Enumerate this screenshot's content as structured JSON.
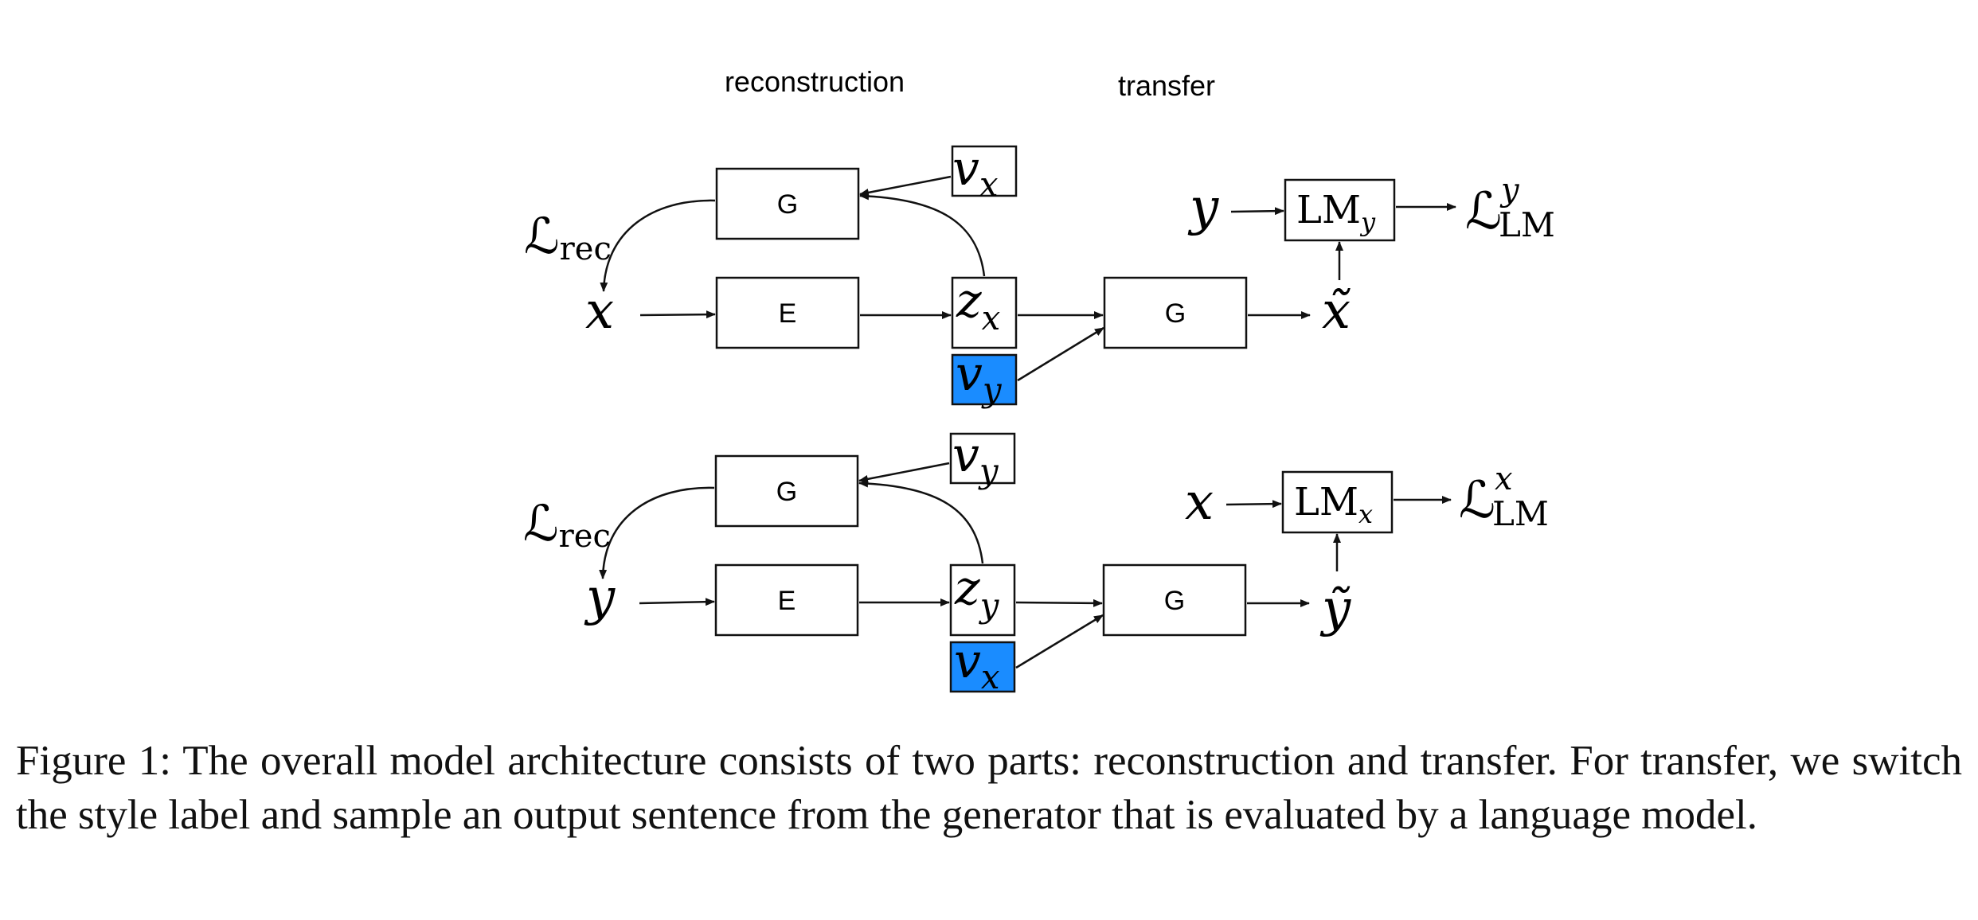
{
  "figure": {
    "section_labels": {
      "reconstruction": "reconstruction",
      "transfer": "transfer"
    },
    "colors": {
      "style_highlight": "#1a8cff",
      "stroke": "#111111"
    },
    "rows": [
      {
        "id": "x-row",
        "generator_label": "G",
        "encoder_label": "E",
        "transfer_generator_label": "G",
        "loss_rec": {
          "base": "ℒ",
          "sub": "rec"
        },
        "input": "x",
        "style_in": {
          "base": "v",
          "sub": "x"
        },
        "latent": {
          "base": "z",
          "sub": "x"
        },
        "style_swap": {
          "base": "v",
          "sub": "y"
        },
        "output": "x̃",
        "lm": {
          "base": "LM",
          "sub": "y"
        },
        "lm_input": "y",
        "loss_lm": {
          "base": "ℒ",
          "sup": "y",
          "sub": "LM"
        }
      },
      {
        "id": "y-row",
        "generator_label": "G",
        "encoder_label": "E",
        "transfer_generator_label": "G",
        "loss_rec": {
          "base": "ℒ",
          "sub": "rec"
        },
        "input": "y",
        "style_in": {
          "base": "v",
          "sub": "y"
        },
        "latent": {
          "base": "z",
          "sub": "y"
        },
        "style_swap": {
          "base": "v",
          "sub": "x"
        },
        "output": "ỹ",
        "lm": {
          "base": "LM",
          "sub": "x"
        },
        "lm_input": "x",
        "loss_lm": {
          "base": "ℒ",
          "sup": "x",
          "sub": "LM"
        }
      }
    ]
  },
  "caption": "Figure 1: The overall model architecture consists of two parts: reconstruction and transfer. For transfer, we switch the style label and sample an output sentence from the generator that is evaluated by a language model."
}
